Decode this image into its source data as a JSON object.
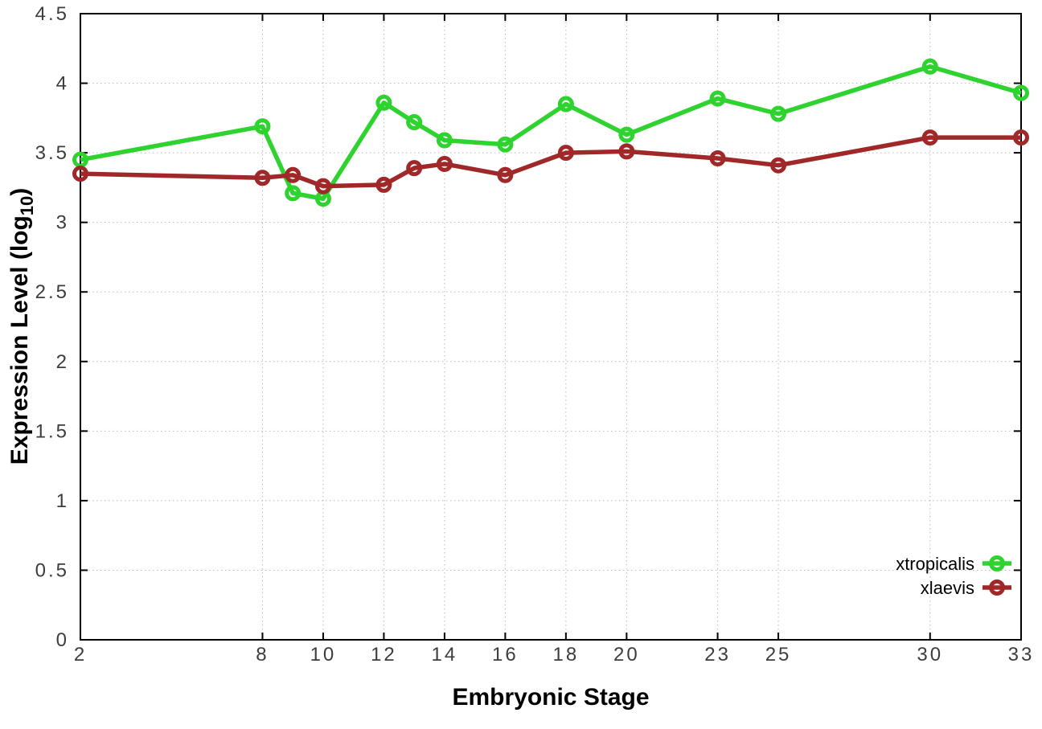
{
  "chart_data": {
    "type": "line",
    "title": "",
    "xlabel": "Embryonic Stage",
    "ylabel": "Expression Level (log10)",
    "ylabel_parts": {
      "main": "Expression Level (log",
      "sub": "10",
      "end": ")"
    },
    "x": [
      2,
      8,
      9,
      10,
      12,
      13,
      14,
      16,
      18,
      20,
      23,
      25,
      30,
      33
    ],
    "x_ticks": [
      2,
      8,
      10,
      12,
      14,
      16,
      18,
      20,
      23,
      25,
      30,
      33
    ],
    "x_tick_labels": [
      "2",
      "8",
      "10",
      "12",
      "14",
      "16",
      "18",
      "20",
      "23",
      "25",
      "30",
      "33"
    ],
    "y_ticks": [
      0,
      0.5,
      1,
      1.5,
      2,
      2.5,
      3,
      3.5,
      4,
      4.5
    ],
    "y_tick_labels": [
      "0",
      "0.5",
      "1",
      "1.5",
      "2",
      "2.5",
      "3",
      "3.5",
      "4",
      "4.5"
    ],
    "xlim": [
      2,
      33
    ],
    "ylim": [
      0,
      4.5
    ],
    "grid": true,
    "legend_position": "bottom-right",
    "series": [
      {
        "name": "xtropicalis",
        "color": "#2FD32F",
        "marker_shape": "open-circle",
        "values": [
          3.45,
          3.69,
          3.21,
          3.17,
          3.86,
          3.72,
          3.59,
          3.56,
          3.85,
          3.63,
          3.89,
          3.78,
          4.12,
          3.93
        ]
      },
      {
        "name": "xlaevis",
        "color": "#A02828",
        "marker_shape": "open-circle",
        "values": [
          3.35,
          3.32,
          3.34,
          3.26,
          3.27,
          3.39,
          3.42,
          3.34,
          3.5,
          3.51,
          3.46,
          3.41,
          3.61,
          3.61
        ]
      }
    ]
  },
  "colors": {
    "background": "#ffffff",
    "plot_border": "#000000",
    "grid": "#bbbbbb",
    "tick_text": "#3d3d3d",
    "label_text": "#000000"
  }
}
